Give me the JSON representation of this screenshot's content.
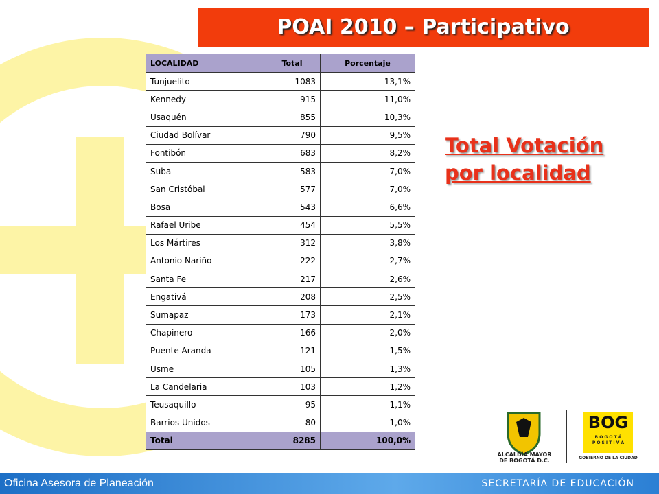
{
  "header": {
    "title": "POAI 2010 – Participativo"
  },
  "side_title": [
    "Total Votación",
    "por localidad"
  ],
  "table": {
    "columns": [
      "LOCALIDAD",
      "Total",
      "Porcentaje"
    ],
    "rows": [
      [
        "Tunjuelito",
        "1083",
        "13,1%"
      ],
      [
        "Kennedy",
        "915",
        "11,0%"
      ],
      [
        "Usaquén",
        "855",
        "10,3%"
      ],
      [
        "Ciudad Bolívar",
        "790",
        "9,5%"
      ],
      [
        "Fontibón",
        "683",
        "8,2%"
      ],
      [
        "Suba",
        "583",
        "7,0%"
      ],
      [
        "San Cristóbal",
        "577",
        "7,0%"
      ],
      [
        "Bosa",
        "543",
        "6,6%"
      ],
      [
        "Rafael Uribe",
        "454",
        "5,5%"
      ],
      [
        "Los Mártires",
        "312",
        "3,8%"
      ],
      [
        "Antonio Nariño",
        "222",
        "2,7%"
      ],
      [
        "Santa Fe",
        "217",
        "2,6%"
      ],
      [
        "Engativá",
        "208",
        "2,5%"
      ],
      [
        "Sumapaz",
        "173",
        "2,1%"
      ],
      [
        "Chapinero",
        "166",
        "2,0%"
      ],
      [
        "Puente Aranda",
        "121",
        "1,5%"
      ],
      [
        "Usme",
        "105",
        "1,3%"
      ],
      [
        "La Candelaria",
        "103",
        "1,2%"
      ],
      [
        "Teusaquillo",
        "95",
        "1,1%"
      ],
      [
        "Barrios Unidos",
        "80",
        "1,0%"
      ]
    ],
    "total": [
      "Total",
      "8285",
      "100,0%"
    ]
  },
  "logos": {
    "alcaldia": [
      "ALCALDÍA MAYOR",
      "DE BOGOTÁ D.C."
    ],
    "bog": "BOG",
    "bog_sub": [
      "B O G O T Á",
      "P O S I T I V A"
    ],
    "gobierno": "GOBIERNO DE LA CIUDAD"
  },
  "footer": {
    "left": "Oficina Asesora de Planeación",
    "right": "SECRETARÍA DE EDUCACIÓN"
  }
}
